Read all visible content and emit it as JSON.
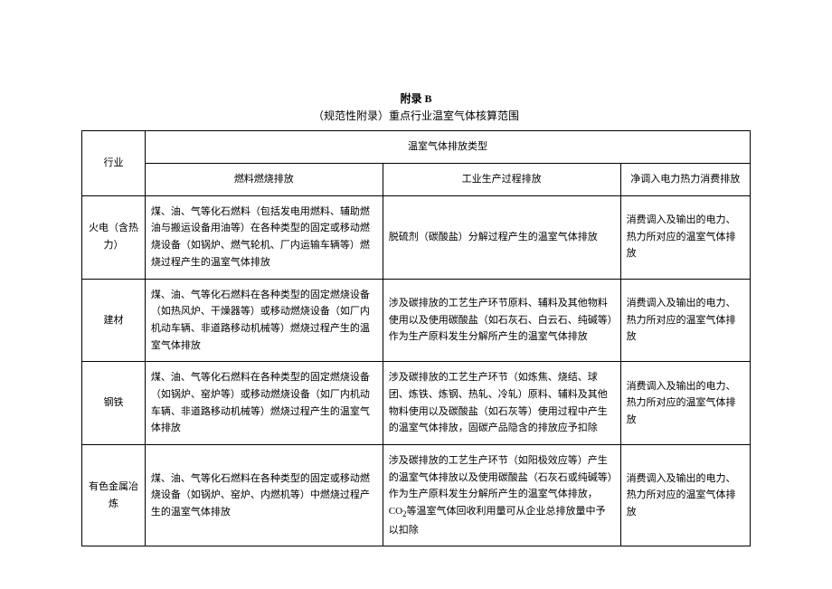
{
  "title": {
    "line1": "附录 B",
    "line2": "（规范性附录）重点行业温室气体核算范围"
  },
  "headers": {
    "industry": "行业",
    "emission_type": "温室气体排放类型",
    "fuel": "燃料燃烧排放",
    "process": "工业生产过程排放",
    "net": "净调入电力热力消费排放"
  },
  "rows": [
    {
      "industry": "火电（含热力）",
      "fuel": "煤、油、气等化石燃料（包括发电用燃料、辅助燃油与搬运设备用油等）在各种类型的固定或移动燃烧设备（如锅炉、燃气轮机、厂内运输车辆等）燃烧过程产生的温室气体排放",
      "process": "脱硫剂（碳酸盐）分解过程产生的温室气体排放",
      "net": "消费调入及输出的电力、热力所对应的温室气体排放"
    },
    {
      "industry": "建材",
      "fuel": "煤、油、气等化石燃料在各种类型的固定燃烧设备（如热风炉、干燥器等）或移动燃烧设备（如厂内机动车辆、非道路移动机械等）燃烧过程产生的温室气体排放",
      "process": "涉及碳排放的工艺生产环节原料、辅料及其他物料使用以及使用碳酸盐（如石灰石、白云石、纯碱等）作为生产原料发生分解所产生的温室气体排放",
      "net": "消费调入及输出的电力、热力所对应的温室气体排放"
    },
    {
      "industry": "钢铁",
      "fuel": "煤、油、气等化石燃料在各种类型的固定燃烧设备（如锅炉、窑炉等）或移动燃烧设备（如厂内机动车辆、非道路移动机械等）燃烧过程产生的温室气体排放",
      "process": "涉及碳排放的工艺生产环节（如炼焦、烧结、球团、炼铁、炼钢、热轧、冷轧）原料、辅料及其他物料使用以及碳酸盐（如石灰等）使用过程中产生的温室气体排放，固碳产品隐含的排放应予扣除",
      "net": "消费调入及输出的电力、热力所对应的温室气体排放"
    },
    {
      "industry": "有色金属冶炼",
      "fuel": "煤、油、气等化石燃料在各种类型的固定或移动燃烧设备（如锅炉、窑炉、内燃机等）中燃烧过程产生的温室气体排放",
      "process_pre": "涉及碳排放的工艺生产环节（如阳极效应等）产生的温室气体排放以及使用碳酸盐（石灰石或纯碱等）作为生产原料发生分解所产生的温室气体排放，CO",
      "process_sub": "2",
      "process_post": "等温室气体回收利用量可从企业总排放量中予以扣除",
      "net": "消费调入及输出的电力、热力所对应的温室气体排放"
    }
  ]
}
